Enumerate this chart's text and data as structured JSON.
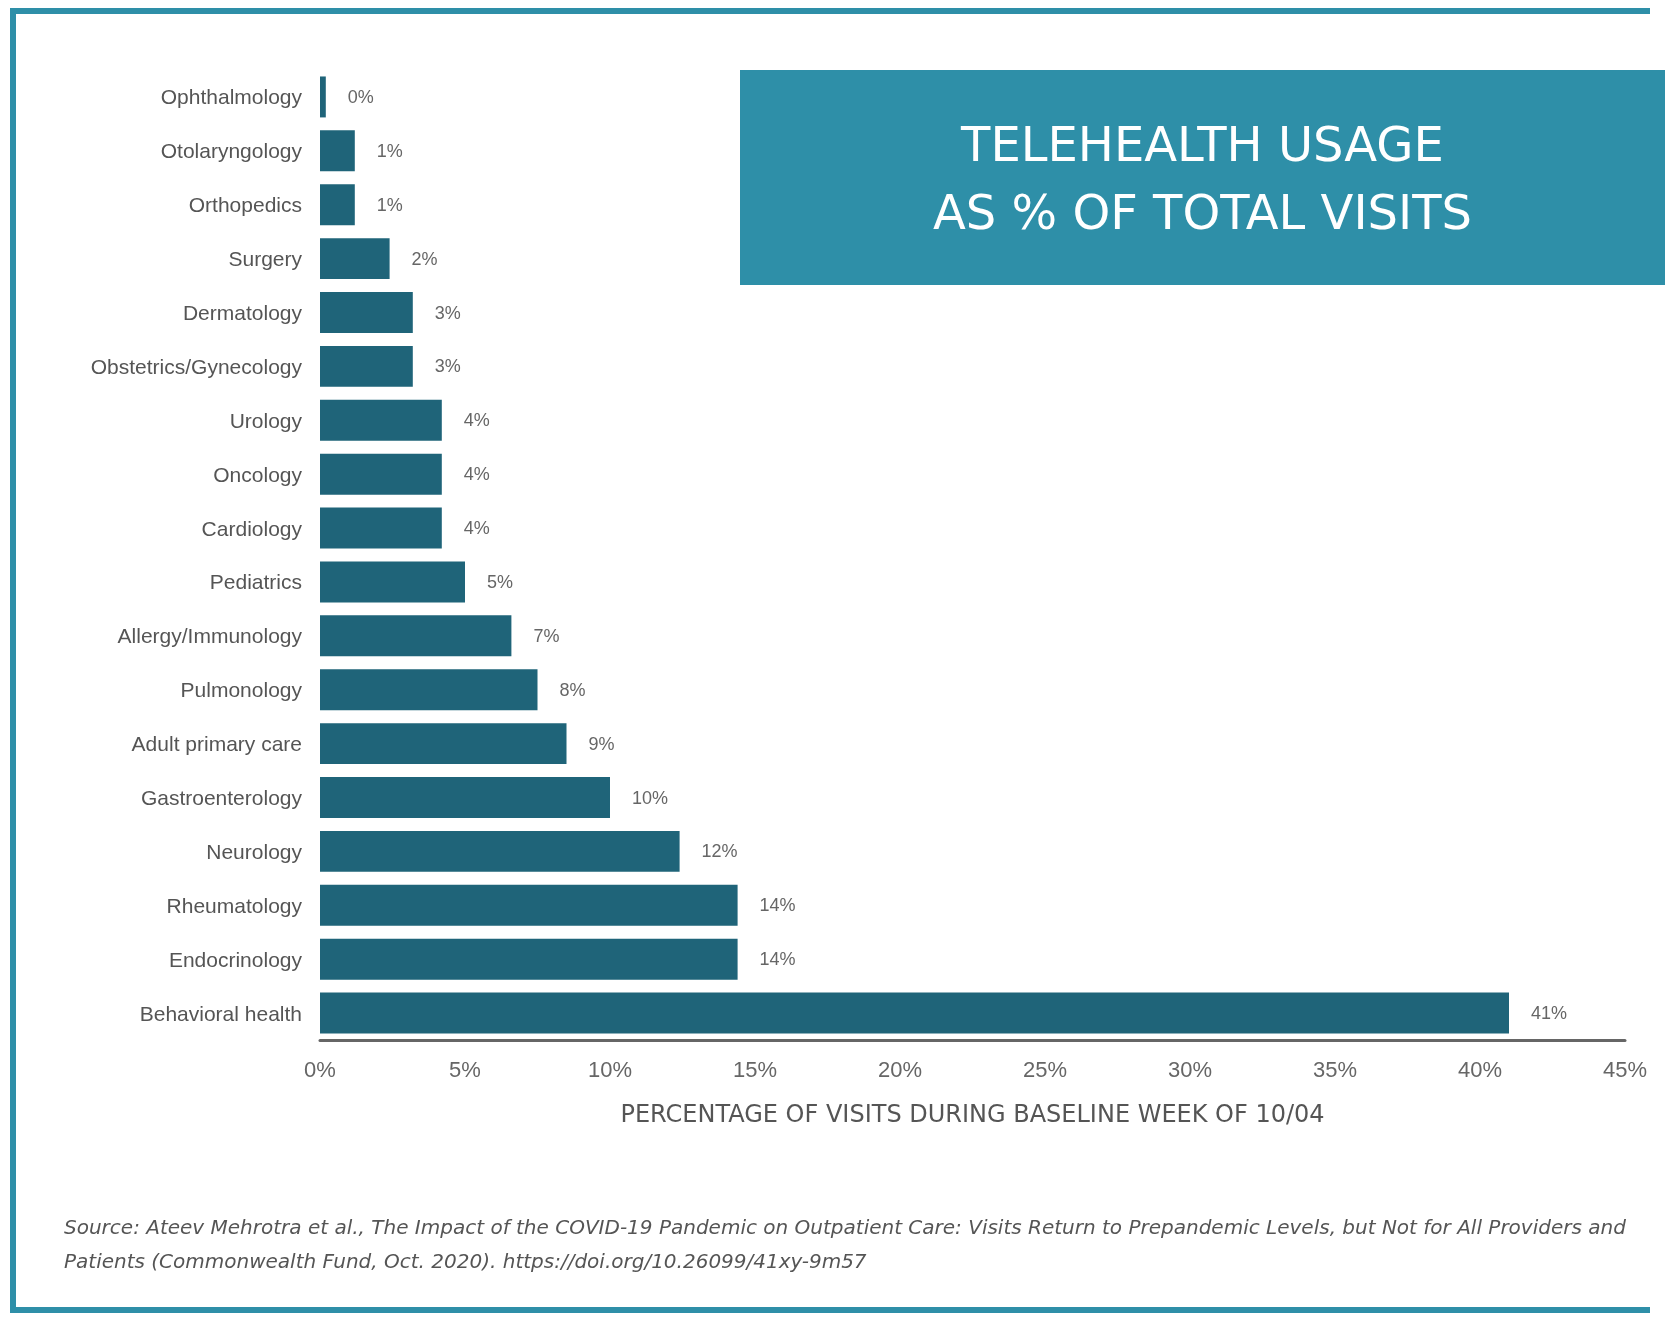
{
  "chart_data": {
    "type": "bar",
    "orientation": "horizontal",
    "title": "TELEHEALTH USAGE\nAS % OF TOTAL VISITS",
    "xlabel": "PERCENTAGE OF VISITS DURING BASELINE WEEK OF 10/04",
    "categories": [
      "Ophthalmology",
      "Otolaryngology",
      "Orthopedics",
      "Surgery",
      "Dermatology",
      "Obstetrics/Gynecology",
      "Urology",
      "Oncology",
      "Cardiology",
      "Pediatrics",
      "Allergy/Immunology",
      "Pulmonology",
      "Adult primary care",
      "Gastroenterology",
      "Neurology",
      "Rheumatology",
      "Endocrinology",
      "Behavioral health"
    ],
    "values": [
      0.2,
      1.2,
      1.2,
      2.4,
      3.2,
      3.2,
      4.2,
      4.2,
      4.2,
      5,
      6.6,
      7.5,
      8.5,
      10,
      12.4,
      14.4,
      14.4,
      41
    ],
    "value_labels": [
      "0%",
      "1%",
      "1%",
      "2%",
      "3%",
      "3%",
      "4%",
      "4%",
      "4%",
      "5%",
      "7%",
      "8%",
      "9%",
      "10%",
      "12%",
      "14%",
      "14%",
      "41%"
    ],
    "color": "#1f6479",
    "xlim": [
      0,
      45
    ],
    "xticks": [
      {
        "value": 0,
        "label": "0%"
      },
      {
        "value": 5,
        "label": "5%"
      },
      {
        "value": 10,
        "label": "10%"
      },
      {
        "value": 15,
        "label": "15%"
      },
      {
        "value": 20,
        "label": "20%"
      },
      {
        "value": 25,
        "label": "25%"
      },
      {
        "value": 30,
        "label": "30%"
      },
      {
        "value": 35,
        "label": "35%"
      },
      {
        "value": 40,
        "label": "40%"
      },
      {
        "value": 45,
        "label": "45%"
      }
    ],
    "grid": false,
    "annotations": [
      "Source: Ateev Mehrotra et al., The Impact of the COVID-19 Pandemic on Outpatient Care: Visits Return to Prepandemic Levels, but Not for All Providers and Patients (Commonwealth Fund, Oct. 2020). https://doi.org/10.26099/41xy-9m57"
    ]
  }
}
